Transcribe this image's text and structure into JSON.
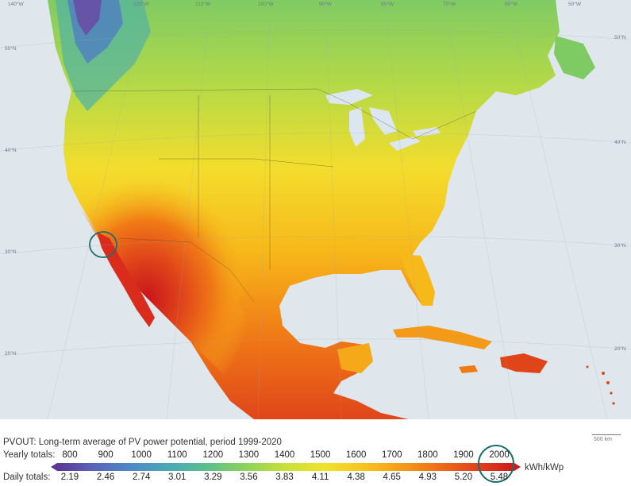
{
  "map": {
    "graticule": {
      "lon_labels": [
        "140°W",
        "120°W",
        "110°W",
        "100°W",
        "90°W",
        "80°W",
        "70°W",
        "60°W",
        "50°W"
      ],
      "lat_labels_left": [
        "50°N",
        "40°N",
        "30°N",
        "20°N"
      ],
      "lat_labels_right": [
        "50°N",
        "40°N",
        "30°N",
        "20°N"
      ]
    },
    "scale_bar": "500 km",
    "colors": {
      "ocean": "#dfe7ec",
      "very_high": "#c8141c",
      "high": "#e0451a",
      "mid_high": "#f07a16",
      "mid": "#f7b81a",
      "mid_low": "#f3dd2d",
      "low": "#b9da45",
      "lower": "#7fcb63",
      "teal": "#55b49f",
      "blue": "#4f7fc2",
      "purple": "#6a4aa5",
      "lakes": "#dbe6ee"
    }
  },
  "legend": {
    "title": "PVOUT: Long-term average of PV power potential, period 1999-2020",
    "yearly_label": "Yearly totals:",
    "daily_label": "Daily totals:",
    "yearly_ticks": [
      "800",
      "900",
      "1000",
      "1100",
      "1200",
      "1300",
      "1400",
      "1500",
      "1600",
      "1700",
      "1800",
      "1900",
      "2000"
    ],
    "daily_ticks": [
      "2.19",
      "2.46",
      "2.74",
      "3.01",
      "3.29",
      "3.56",
      "3.83",
      "4.11",
      "4.38",
      "4.65",
      "4.93",
      "5.20",
      "5.48"
    ],
    "unit": "kWh/kWp",
    "gradient_colors": [
      "#5a2f8e",
      "#5a5fb8",
      "#4f88c8",
      "#48a9b8",
      "#5bbf8c",
      "#8ed35a",
      "#c8e03a",
      "#f0e22a",
      "#f7c31e",
      "#f49a19",
      "#ec6a18",
      "#e03c1a",
      "#c8141c"
    ],
    "highlight": "#1e6e6e"
  }
}
